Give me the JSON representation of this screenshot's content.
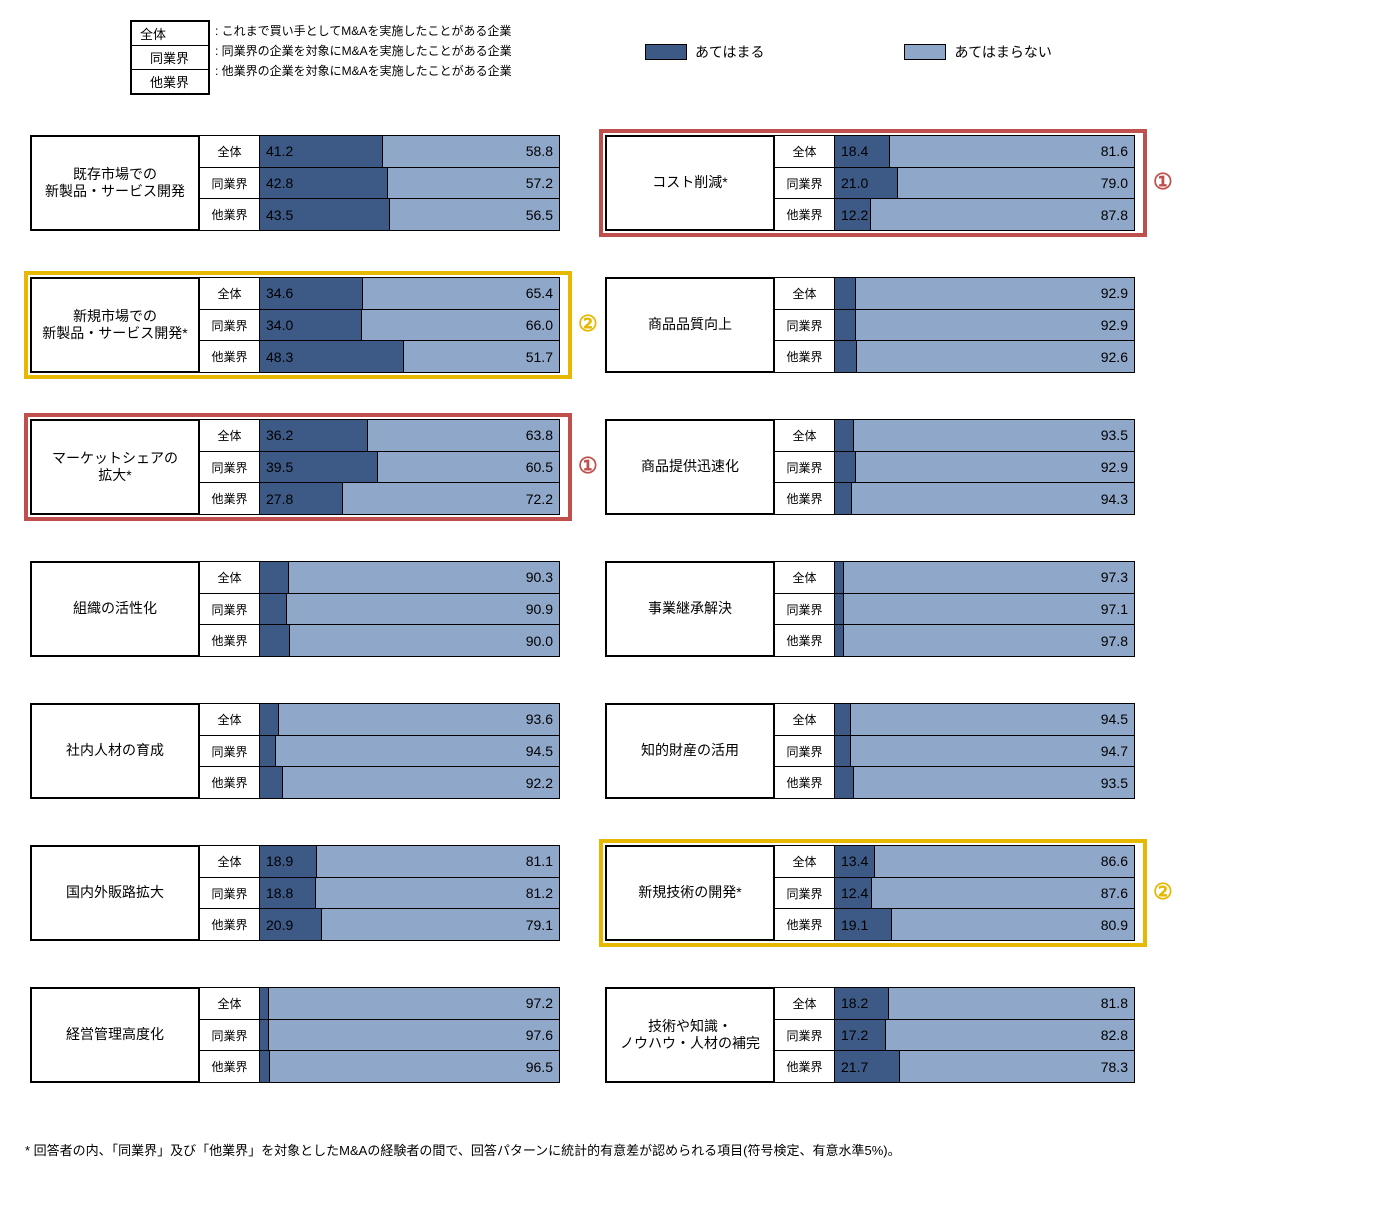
{
  "colors": {
    "dark": "#3d5a87",
    "light": "#8fa7c9",
    "border": "#000000",
    "hl_red": "#c0504d",
    "hl_yellow": "#e7b800"
  },
  "rowLabels": [
    "全体",
    "同業界",
    "他業界"
  ],
  "legend": {
    "top": "全体",
    "mid": "同業界",
    "bot": "他業界",
    "topNote": ": これまで買い手としてM&Aを実施したことがある企業",
    "midNote": ": 同業界の企業を対象にM&Aを実施したことがある企業",
    "botNote": ": 他業界の企業を対象にM&Aを実施したことがある企業"
  },
  "swatchLegend": {
    "dark": "あてはまる",
    "light": "あてはまらない"
  },
  "layout": {
    "groupHeight": 96,
    "groupGap": 46,
    "topStart": 115,
    "leftColX": 10,
    "rightColX": 585
  },
  "leftGroups": [
    {
      "title": "既存市場での\n新製品・サービス開発",
      "rows": [
        [
          41.2,
          58.8
        ],
        [
          42.8,
          57.2
        ],
        [
          43.5,
          56.5
        ]
      ]
    },
    {
      "title": "新規市場での\n新製品・サービス開発*",
      "rows": [
        [
          34.6,
          65.4
        ],
        [
          34.0,
          66.0
        ],
        [
          48.3,
          51.7
        ]
      ],
      "hl": "yellow"
    },
    {
      "title": "マーケットシェアの\n拡大*",
      "rows": [
        [
          36.2,
          63.8
        ],
        [
          39.5,
          60.5
        ],
        [
          27.8,
          72.2
        ]
      ],
      "hl": "red"
    },
    {
      "title": "組織の活性化",
      "rows": [
        [
          9.7,
          90.3
        ],
        [
          9.1,
          90.9
        ],
        [
          10.0,
          90.0
        ]
      ]
    },
    {
      "title": "社内人材の育成",
      "rows": [
        [
          6.4,
          93.6
        ],
        [
          5.5,
          94.5
        ],
        [
          7.8,
          92.2
        ]
      ]
    },
    {
      "title": "国内外販路拡大",
      "rows": [
        [
          18.9,
          81.1
        ],
        [
          18.8,
          81.2
        ],
        [
          20.9,
          79.1
        ]
      ]
    },
    {
      "title": "経営管理高度化",
      "rows": [
        [
          2.8,
          97.2
        ],
        [
          2.4,
          97.6
        ],
        [
          3.5,
          96.5
        ]
      ]
    }
  ],
  "rightGroups": [
    {
      "title": "コスト削減*",
      "rows": [
        [
          18.4,
          81.6
        ],
        [
          21.0,
          79.0
        ],
        [
          12.2,
          87.8
        ]
      ],
      "hl": "red"
    },
    {
      "title": "商品品質向上",
      "rows": [
        [
          7.1,
          92.9
        ],
        [
          7.1,
          92.9
        ],
        [
          7.4,
          92.6
        ]
      ]
    },
    {
      "title": "商品提供迅速化",
      "rows": [
        [
          6.5,
          93.5
        ],
        [
          7.1,
          92.9
        ],
        [
          5.7,
          94.3
        ]
      ]
    },
    {
      "title": "事業継承解決",
      "rows": [
        [
          2.7,
          97.3
        ],
        [
          2.9,
          97.1
        ],
        [
          2.2,
          97.8
        ]
      ]
    },
    {
      "title": "知的財産の活用",
      "rows": [
        [
          5.5,
          94.5
        ],
        [
          5.3,
          94.7
        ],
        [
          6.5,
          93.5
        ]
      ]
    },
    {
      "title": "新規技術の開発*",
      "rows": [
        [
          13.4,
          86.6
        ],
        [
          12.4,
          87.6
        ],
        [
          19.1,
          80.9
        ]
      ],
      "hl": "yellow"
    },
    {
      "title": "技術や知識・\nノウハウ・人材の補完",
      "rows": [
        [
          18.2,
          81.8
        ],
        [
          17.2,
          82.8
        ],
        [
          21.7,
          78.3
        ]
      ]
    }
  ],
  "badges": {
    "redLeft": "①",
    "yellowLeft": "②",
    "redRight": "①",
    "yellowRight": "②"
  },
  "footnote": "* 回答者の内、「同業界」及び「他業界」を対象としたM&Aの経験者の間で、回答パターンに統計的有意差が認められる項目(符号検定、有意水準5%)。"
}
